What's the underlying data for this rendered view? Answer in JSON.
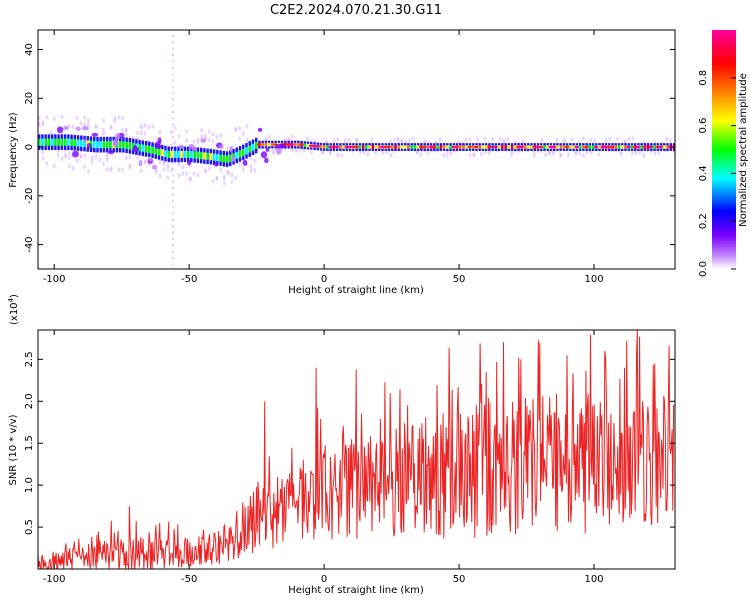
{
  "title": "C2E2.2024.070.21.30.G11",
  "chart_data": [
    {
      "type": "heatmap",
      "xlabel": "Height of straight line (km)",
      "ylabel": "Frequency (Hz)",
      "xlim": [
        -106,
        130
      ],
      "ylim": [
        -50,
        48
      ],
      "xticks": [
        -100,
        -50,
        0,
        50,
        100
      ],
      "yticks": [
        -40,
        -20,
        0,
        20,
        40
      ],
      "band_center": [
        [
          -104,
          2
        ],
        [
          -95,
          2
        ],
        [
          -85,
          1
        ],
        [
          -75,
          1
        ],
        [
          -65,
          -1
        ],
        [
          -58,
          -3
        ],
        [
          -50,
          -3
        ],
        [
          -42,
          -4
        ],
        [
          -36,
          -5
        ],
        [
          -30,
          -2
        ],
        [
          -25,
          1
        ],
        [
          -10,
          1
        ],
        [
          0,
          0
        ],
        [
          25,
          0
        ],
        [
          50,
          0
        ],
        [
          75,
          0
        ],
        [
          100,
          0
        ],
        [
          130,
          0
        ]
      ],
      "spike_x": -56,
      "colorbar": {
        "label": "Normalized spectral amplitude",
        "ticks": [
          "0.0",
          "0.2",
          "0.4",
          "0.6",
          "0.8"
        ],
        "range": [
          0,
          1
        ],
        "colors": [
          "#ffffff",
          "#7a00ff",
          "#0000ff",
          "#00ffff",
          "#00ff00",
          "#ffff00",
          "#ff8000",
          "#ff0000",
          "#ff00a0"
        ]
      }
    },
    {
      "type": "line",
      "xlabel": "Height of straight line (km)",
      "ylabel": "SNR (10 * v/v)",
      "scale_label": "(x10",
      "scale_exp": "4",
      "scale_close": ")",
      "xlim": [
        -106,
        130
      ],
      "ylim": [
        0,
        2.85
      ],
      "xticks": [
        -100,
        -50,
        0,
        50,
        100
      ],
      "yticks": [
        "0.5",
        "1.0",
        "1.5",
        "2.0",
        "2.5"
      ],
      "color": "#ee2222",
      "envelope": [
        [
          -106,
          0.08,
          0.12
        ],
        [
          -90,
          0.12,
          0.15
        ],
        [
          -80,
          0.18,
          0.2
        ],
        [
          -70,
          0.18,
          0.2
        ],
        [
          -60,
          0.18,
          0.2
        ],
        [
          -50,
          0.18,
          0.2
        ],
        [
          -40,
          0.25,
          0.2
        ],
        [
          -32,
          0.35,
          0.25
        ],
        [
          -25,
          0.6,
          0.45
        ],
        [
          -15,
          0.75,
          0.45
        ],
        [
          0,
          0.9,
          0.55
        ],
        [
          20,
          1.05,
          0.7
        ],
        [
          50,
          1.15,
          0.8
        ],
        [
          80,
          1.25,
          0.85
        ],
        [
          110,
          1.3,
          0.85
        ],
        [
          130,
          1.25,
          0.7
        ]
      ],
      "peaks": [
        [
          -72,
          0.75
        ],
        [
          -61,
          0.55
        ],
        [
          -37,
          0.5
        ],
        [
          -22,
          2.0
        ],
        [
          -3,
          2.4
        ],
        [
          12,
          2.38
        ],
        [
          60,
          2.35
        ],
        [
          73,
          2.5
        ],
        [
          80,
          2.7
        ],
        [
          90,
          2.55
        ],
        [
          104,
          2.6
        ],
        [
          116,
          2.85
        ],
        [
          126,
          2.0
        ]
      ]
    }
  ]
}
